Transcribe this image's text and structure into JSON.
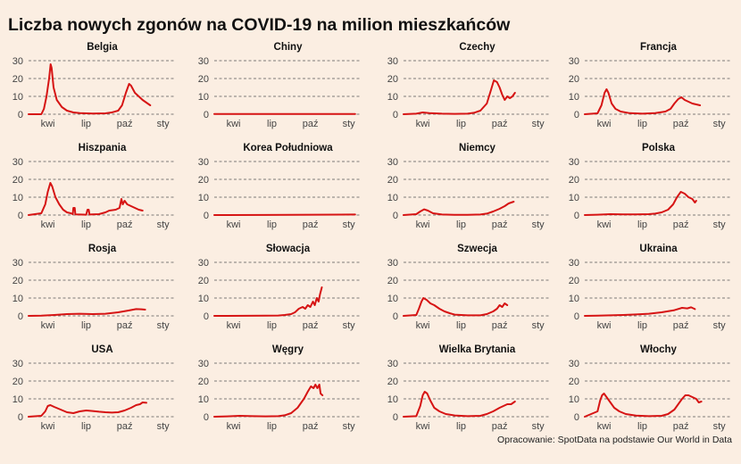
{
  "title": "Liczba nowych zgonów na COVID-19 na milion mieszkańców",
  "caption": "Opracowanie: SpotData na podstawie Our World in Data",
  "colors": {
    "background": "#fbeee2",
    "line": "#d61414",
    "grid": "#555555"
  },
  "chart_data": {
    "type": "line",
    "layout": "small-multiples 4x4",
    "grid": "horizontal dashed",
    "ylim": [
      0,
      32
    ],
    "yticks": [
      0,
      10,
      20,
      30
    ],
    "xticks": [
      "kwi",
      "lip",
      "paź",
      "sty"
    ],
    "xtick_positions": [
      1.5,
      4.5,
      7.5,
      10.5
    ],
    "xlim": [
      0,
      11.5
    ],
    "x_unit": "months since 2020-03-01",
    "series": [
      {
        "name": "Belgia",
        "points": [
          [
            0,
            0
          ],
          [
            1,
            0
          ],
          [
            1.2,
            3
          ],
          [
            1.4,
            10
          ],
          [
            1.6,
            20
          ],
          [
            1.72,
            28
          ],
          [
            1.8,
            26
          ],
          [
            1.95,
            15
          ],
          [
            2.2,
            8
          ],
          [
            2.6,
            4
          ],
          [
            3,
            2
          ],
          [
            3.5,
            1
          ],
          [
            4,
            0.6
          ],
          [
            5,
            0.4
          ],
          [
            6,
            0.5
          ],
          [
            6.5,
            1
          ],
          [
            7,
            2
          ],
          [
            7.3,
            5
          ],
          [
            7.6,
            12
          ],
          [
            7.85,
            17
          ],
          [
            8,
            16
          ],
          [
            8.3,
            12
          ],
          [
            8.6,
            10
          ],
          [
            8.9,
            8
          ],
          [
            9.3,
            6
          ],
          [
            9.5,
            5
          ]
        ]
      },
      {
        "name": "Chiny",
        "points": [
          [
            0,
            0.1
          ],
          [
            11,
            0.1
          ]
        ]
      },
      {
        "name": "Czechy",
        "points": [
          [
            0,
            0
          ],
          [
            1,
            0.3
          ],
          [
            1.5,
            1
          ],
          [
            2,
            0.6
          ],
          [
            3,
            0.3
          ],
          [
            4,
            0.2
          ],
          [
            5,
            0.3
          ],
          [
            5.5,
            0.8
          ],
          [
            6,
            2
          ],
          [
            6.5,
            6
          ],
          [
            6.8,
            13
          ],
          [
            7.05,
            19
          ],
          [
            7.3,
            18
          ],
          [
            7.5,
            15
          ],
          [
            7.7,
            11
          ],
          [
            7.9,
            8
          ],
          [
            8.1,
            10
          ],
          [
            8.3,
            9
          ],
          [
            8.5,
            10
          ],
          [
            8.7,
            12
          ]
        ]
      },
      {
        "name": "Francja",
        "points": [
          [
            0,
            0
          ],
          [
            1,
            0.5
          ],
          [
            1.3,
            5
          ],
          [
            1.55,
            12
          ],
          [
            1.7,
            14
          ],
          [
            1.85,
            12
          ],
          [
            2.1,
            6
          ],
          [
            2.4,
            3
          ],
          [
            2.8,
            1.5
          ],
          [
            3.5,
            0.6
          ],
          [
            4.5,
            0.3
          ],
          [
            5.5,
            0.6
          ],
          [
            6.3,
            1.5
          ],
          [
            6.7,
            3
          ],
          [
            7,
            6
          ],
          [
            7.3,
            8.5
          ],
          [
            7.55,
            9.5
          ],
          [
            7.8,
            8
          ],
          [
            8.1,
            7
          ],
          [
            8.4,
            6
          ],
          [
            8.7,
            5.5
          ],
          [
            9,
            5
          ]
        ]
      },
      {
        "name": "Hiszpania",
        "points": [
          [
            0,
            0
          ],
          [
            1,
            1
          ],
          [
            1.3,
            6
          ],
          [
            1.5,
            13
          ],
          [
            1.7,
            18
          ],
          [
            1.85,
            16
          ],
          [
            2.1,
            10
          ],
          [
            2.4,
            6
          ],
          [
            2.7,
            3
          ],
          [
            3,
            1.5
          ],
          [
            3.3,
            1
          ],
          [
            3.45,
            0.5
          ],
          [
            3.5,
            4
          ],
          [
            3.6,
            4
          ],
          [
            3.65,
            0.4
          ],
          [
            4,
            0.3
          ],
          [
            4.5,
            0.2
          ],
          [
            4.6,
            3
          ],
          [
            4.7,
            3
          ],
          [
            4.75,
            0.3
          ],
          [
            5.5,
            0.5
          ],
          [
            6,
            1.5
          ],
          [
            6.3,
            2.5
          ],
          [
            6.8,
            3
          ],
          [
            7.1,
            4
          ],
          [
            7.25,
            9
          ],
          [
            7.35,
            6
          ],
          [
            7.5,
            8
          ],
          [
            7.7,
            6
          ],
          [
            8,
            5
          ],
          [
            8.3,
            4
          ],
          [
            8.6,
            3
          ],
          [
            8.9,
            2.5
          ]
        ]
      },
      {
        "name": "Korea Południowa",
        "points": [
          [
            0,
            0
          ],
          [
            4,
            0.05
          ],
          [
            8,
            0.2
          ],
          [
            11,
            0.3
          ]
        ]
      },
      {
        "name": "Niemcy",
        "points": [
          [
            0,
            0
          ],
          [
            1,
            0.5
          ],
          [
            1.3,
            2
          ],
          [
            1.6,
            3.2
          ],
          [
            1.9,
            2.5
          ],
          [
            2.3,
            1
          ],
          [
            3,
            0.3
          ],
          [
            4,
            0.1
          ],
          [
            5,
            0.1
          ],
          [
            6,
            0.3
          ],
          [
            6.5,
            0.8
          ],
          [
            7,
            2
          ],
          [
            7.5,
            3.5
          ],
          [
            7.9,
            5
          ],
          [
            8.2,
            6.5
          ],
          [
            8.6,
            7.5
          ]
        ]
      },
      {
        "name": "Polska",
        "points": [
          [
            0,
            0
          ],
          [
            1,
            0.2
          ],
          [
            2,
            0.5
          ],
          [
            3,
            0.4
          ],
          [
            4,
            0.4
          ],
          [
            5,
            0.5
          ],
          [
            5.5,
            0.8
          ],
          [
            6,
            1.5
          ],
          [
            6.5,
            3
          ],
          [
            6.9,
            6
          ],
          [
            7.2,
            10
          ],
          [
            7.5,
            13
          ],
          [
            7.8,
            12
          ],
          [
            8.1,
            10
          ],
          [
            8.4,
            9
          ],
          [
            8.6,
            7
          ],
          [
            8.7,
            8
          ]
        ]
      },
      {
        "name": "Rosja",
        "points": [
          [
            0,
            0
          ],
          [
            1,
            0.1
          ],
          [
            2,
            0.5
          ],
          [
            3,
            1
          ],
          [
            4,
            1.2
          ],
          [
            5,
            1
          ],
          [
            6,
            1.2
          ],
          [
            7,
            2
          ],
          [
            7.8,
            3
          ],
          [
            8.4,
            3.8
          ],
          [
            8.8,
            3.7
          ],
          [
            9.1,
            3.5
          ]
        ]
      },
      {
        "name": "Słowacja",
        "points": [
          [
            0,
            0
          ],
          [
            4,
            0.1
          ],
          [
            5,
            0.2
          ],
          [
            5.5,
            0.5
          ],
          [
            6,
            1
          ],
          [
            6.3,
            2
          ],
          [
            6.6,
            4
          ],
          [
            6.9,
            5
          ],
          [
            7.1,
            4
          ],
          [
            7.3,
            6
          ],
          [
            7.5,
            5
          ],
          [
            7.7,
            8
          ],
          [
            7.85,
            6
          ],
          [
            8,
            10
          ],
          [
            8.15,
            8
          ],
          [
            8.25,
            12
          ],
          [
            8.4,
            16
          ]
        ]
      },
      {
        "name": "Szwecja",
        "points": [
          [
            0,
            0
          ],
          [
            1,
            0.5
          ],
          [
            1.2,
            4
          ],
          [
            1.4,
            8
          ],
          [
            1.55,
            10
          ],
          [
            1.8,
            9
          ],
          [
            2.1,
            7
          ],
          [
            2.4,
            6
          ],
          [
            2.8,
            4
          ],
          [
            3.2,
            2.5
          ],
          [
            3.6,
            1.5
          ],
          [
            4,
            0.7
          ],
          [
            5,
            0.3
          ],
          [
            6,
            0.3
          ],
          [
            6.5,
            1
          ],
          [
            7,
            2.5
          ],
          [
            7.3,
            4
          ],
          [
            7.5,
            6
          ],
          [
            7.7,
            5
          ],
          [
            7.9,
            7
          ],
          [
            8.1,
            6
          ]
        ]
      },
      {
        "name": "Ukraina",
        "points": [
          [
            0,
            0
          ],
          [
            1,
            0.1
          ],
          [
            2,
            0.3
          ],
          [
            3,
            0.5
          ],
          [
            4,
            0.8
          ],
          [
            5,
            1.2
          ],
          [
            6,
            2
          ],
          [
            7,
            3.2
          ],
          [
            7.6,
            4.5
          ],
          [
            8,
            4.2
          ],
          [
            8.3,
            4.8
          ],
          [
            8.6,
            3.8
          ]
        ]
      },
      {
        "name": "USA",
        "points": [
          [
            0,
            0
          ],
          [
            1,
            0.5
          ],
          [
            1.3,
            3
          ],
          [
            1.5,
            6
          ],
          [
            1.7,
            6.5
          ],
          [
            2,
            5.5
          ],
          [
            2.5,
            4
          ],
          [
            3,
            2.5
          ],
          [
            3.5,
            2
          ],
          [
            4,
            3
          ],
          [
            4.5,
            3.5
          ],
          [
            5,
            3.2
          ],
          [
            5.5,
            2.8
          ],
          [
            6,
            2.5
          ],
          [
            6.5,
            2.3
          ],
          [
            7,
            2.5
          ],
          [
            7.5,
            3.5
          ],
          [
            8,
            5
          ],
          [
            8.4,
            6.5
          ],
          [
            8.7,
            7
          ],
          [
            8.9,
            8
          ],
          [
            9.2,
            7.8
          ]
        ]
      },
      {
        "name": "Węgry",
        "points": [
          [
            0,
            0
          ],
          [
            1,
            0.2
          ],
          [
            2,
            0.5
          ],
          [
            3,
            0.3
          ],
          [
            4,
            0.2
          ],
          [
            5,
            0.3
          ],
          [
            5.5,
            0.8
          ],
          [
            6,
            2
          ],
          [
            6.5,
            5
          ],
          [
            7,
            10
          ],
          [
            7.3,
            14
          ],
          [
            7.55,
            17
          ],
          [
            7.75,
            16
          ],
          [
            7.9,
            18
          ],
          [
            8.05,
            16
          ],
          [
            8.2,
            18
          ],
          [
            8.3,
            13
          ],
          [
            8.45,
            12
          ]
        ]
      },
      {
        "name": "Wielka Brytania",
        "points": [
          [
            0,
            0
          ],
          [
            1,
            0.3
          ],
          [
            1.3,
            6
          ],
          [
            1.5,
            12
          ],
          [
            1.65,
            14
          ],
          [
            1.85,
            13
          ],
          [
            2.1,
            9
          ],
          [
            2.4,
            5
          ],
          [
            2.8,
            3
          ],
          [
            3.3,
            1.5
          ],
          [
            4,
            0.7
          ],
          [
            5,
            0.3
          ],
          [
            6,
            0.5
          ],
          [
            6.5,
            1.5
          ],
          [
            7,
            3
          ],
          [
            7.5,
            5
          ],
          [
            7.8,
            6
          ],
          [
            8.1,
            7
          ],
          [
            8.4,
            7
          ],
          [
            8.7,
            8.5
          ]
        ]
      },
      {
        "name": "Włochy",
        "points": [
          [
            0,
            0
          ],
          [
            1,
            3
          ],
          [
            1.2,
            9
          ],
          [
            1.35,
            12
          ],
          [
            1.5,
            13
          ],
          [
            1.7,
            11
          ],
          [
            2,
            8
          ],
          [
            2.3,
            5
          ],
          [
            2.7,
            3
          ],
          [
            3.2,
            1.5
          ],
          [
            4,
            0.6
          ],
          [
            5,
            0.3
          ],
          [
            6,
            0.5
          ],
          [
            6.5,
            1.5
          ],
          [
            7,
            4
          ],
          [
            7.3,
            7
          ],
          [
            7.6,
            10
          ],
          [
            7.85,
            12
          ],
          [
            8.1,
            12
          ],
          [
            8.4,
            11
          ],
          [
            8.7,
            10
          ],
          [
            8.9,
            8
          ],
          [
            9.1,
            8.5
          ]
        ]
      }
    ]
  }
}
